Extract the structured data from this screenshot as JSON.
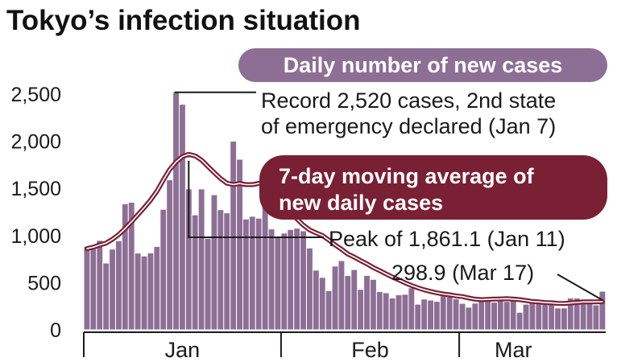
{
  "chart_data": {
    "type": "bar",
    "title": "Tokyo’s infection situation",
    "series_labels": {
      "bars": "Daily number of new cases",
      "line": "7-day moving average of new daily cases"
    },
    "colors": {
      "bar": "#8d6f95",
      "line": "#7a2035",
      "bar_label_bg": "#8d6f95",
      "line_label_bg": "#7a2035",
      "text": "#1a1a1a"
    },
    "ylim": [
      0,
      2500
    ],
    "yticks": [
      {
        "value": 0,
        "label": "0"
      },
      {
        "value": 500,
        "label": "500"
      },
      {
        "value": 1000,
        "label": "1,000"
      },
      {
        "value": 1500,
        "label": "1,500"
      },
      {
        "value": 2000,
        "label": "2,000"
      },
      {
        "value": 2500,
        "label": "2,500"
      }
    ],
    "months": [
      {
        "label": "Jan",
        "start_index": 0,
        "end_index": 31
      },
      {
        "label": "Feb",
        "start_index": 31,
        "end_index": 59
      },
      {
        "label": "Mar",
        "start_index": 59,
        "end_index": 76
      }
    ],
    "x_start": "Dec 24",
    "daily_cases": [
      884,
      888,
      949,
      708,
      856,
      944,
      1337,
      1353,
      814,
      783,
      816,
      884,
      1278,
      1591,
      2520,
      2392,
      1494,
      1219,
      1494,
      970,
      1433,
      1274,
      1240,
      2001,
      1809,
      1175,
      1204,
      1184,
      1471,
      1070,
      986,
      1026,
      1064,
      1078,
      1050,
      868,
      633,
      556,
      415,
      676,
      734,
      576,
      639,
      429,
      577,
      535,
      406,
      393,
      337,
      372,
      377,
      445,
      272,
      327,
      315,
      302,
      360,
      354,
      329,
      281,
      240,
      283,
      318,
      351,
      293,
      357,
      301,
      353,
      186,
      272,
      291,
      288,
      274,
      300,
      232,
      232,
      337,
      337,
      305,
      304,
      264,
      409
    ],
    "moving_average": [
      862,
      877,
      900,
      920,
      960,
      1010,
      1075,
      1147,
      1220,
      1296,
      1375,
      1470,
      1590,
      1700,
      1780,
      1838,
      1861,
      1845,
      1800,
      1733,
      1668,
      1605,
      1555,
      1541,
      1552,
      1540,
      1540,
      1553,
      1542,
      1500,
      1425,
      1330,
      1253,
      1176,
      1110,
      1060,
      1028,
      1000,
      953,
      900,
      855,
      804,
      771,
      735,
      700,
      660,
      628,
      593,
      560,
      530,
      498,
      470,
      445,
      424,
      407,
      392,
      380,
      371,
      360,
      352,
      338,
      325,
      320,
      323,
      327,
      328,
      330,
      326,
      320,
      311,
      300,
      296,
      289,
      287,
      281,
      280,
      285,
      290,
      296,
      296,
      297,
      299
    ],
    "annotations": [
      {
        "lines": [
          "Record 2,520 cases, 2nd state",
          "of emergency declared (Jan 7)"
        ],
        "day_index": 14,
        "value": 2520
      },
      {
        "lines": [
          "Peak of 1,861.1 (Jan 11)"
        ],
        "day_index": 16,
        "value": 1861.1
      },
      {
        "lines": [
          "298.9 (Mar 17)"
        ],
        "day_index": 81,
        "value": 298.9
      }
    ],
    "line_label_lines": [
      "7-day moving average of",
      "new daily cases"
    ]
  }
}
